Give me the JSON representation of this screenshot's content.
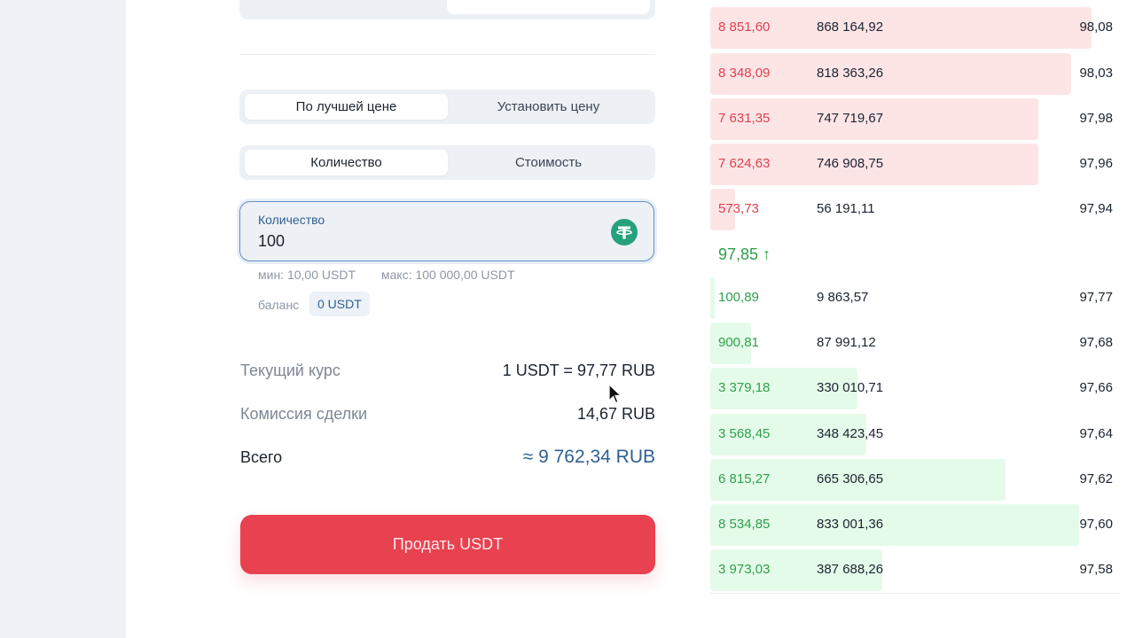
{
  "order_type": {
    "options": [
      "По лучшей цене",
      "Установить цену"
    ],
    "active": 0
  },
  "input_mode": {
    "options": [
      "Количество",
      "Стоимость"
    ],
    "active": 0
  },
  "quantity": {
    "label": "Количество",
    "value": "100",
    "icon": "tether-usdt-icon"
  },
  "limits": {
    "min": "мин: 10,00 USDT",
    "max": "макс: 100 000,00 USDT"
  },
  "balance": {
    "label": "баланс",
    "value": "0 USDT"
  },
  "summary": {
    "rate_label": "Текущий курс",
    "rate_value": "1 USDT = 97,77 RUB",
    "fee_label": "Комиссия сделки",
    "fee_value": "14,67 RUB",
    "total_label": "Всего",
    "total_value": "≈ 9 762,34 RUB"
  },
  "sell_button": "Продать USDT",
  "orderbook": {
    "asks": [
      {
        "amount": "8 851,60",
        "total": "868 164,92",
        "price": "98,08",
        "depth": 0.93
      },
      {
        "amount": "8 348,09",
        "total": "818 363,26",
        "price": "98,03",
        "depth": 0.88
      },
      {
        "amount": "7 631,35",
        "total": "747 719,67",
        "price": "97,98",
        "depth": 0.8
      },
      {
        "amount": "7 624,63",
        "total": "746 908,75",
        "price": "97,96",
        "depth": 0.8
      },
      {
        "amount": "573,73",
        "total": "56 191,11",
        "price": "97,94",
        "depth": 0.06
      }
    ],
    "mid_price": "97,85 ↑",
    "bids": [
      {
        "amount": "100,89",
        "total": "9 863,57",
        "price": "97,77",
        "depth": 0.01
      },
      {
        "amount": "900,81",
        "total": "87 991,12",
        "price": "97,68",
        "depth": 0.1
      },
      {
        "amount": "3 379,18",
        "total": "330 010,71",
        "price": "97,66",
        "depth": 0.36
      },
      {
        "amount": "3 568,45",
        "total": "348 423,45",
        "price": "97,64",
        "depth": 0.38
      },
      {
        "amount": "6 815,27",
        "total": "665 306,65",
        "price": "97,62",
        "depth": 0.72
      },
      {
        "amount": "8 534,85",
        "total": "833 001,36",
        "price": "97,60",
        "depth": 0.9
      },
      {
        "amount": "3 973,03",
        "total": "387 688,26",
        "price": "97,58",
        "depth": 0.42
      }
    ]
  },
  "colors": {
    "sell": "#e8414f",
    "ask": "#e04050",
    "bid": "#2fa04c",
    "accent": "#2f5f92"
  }
}
